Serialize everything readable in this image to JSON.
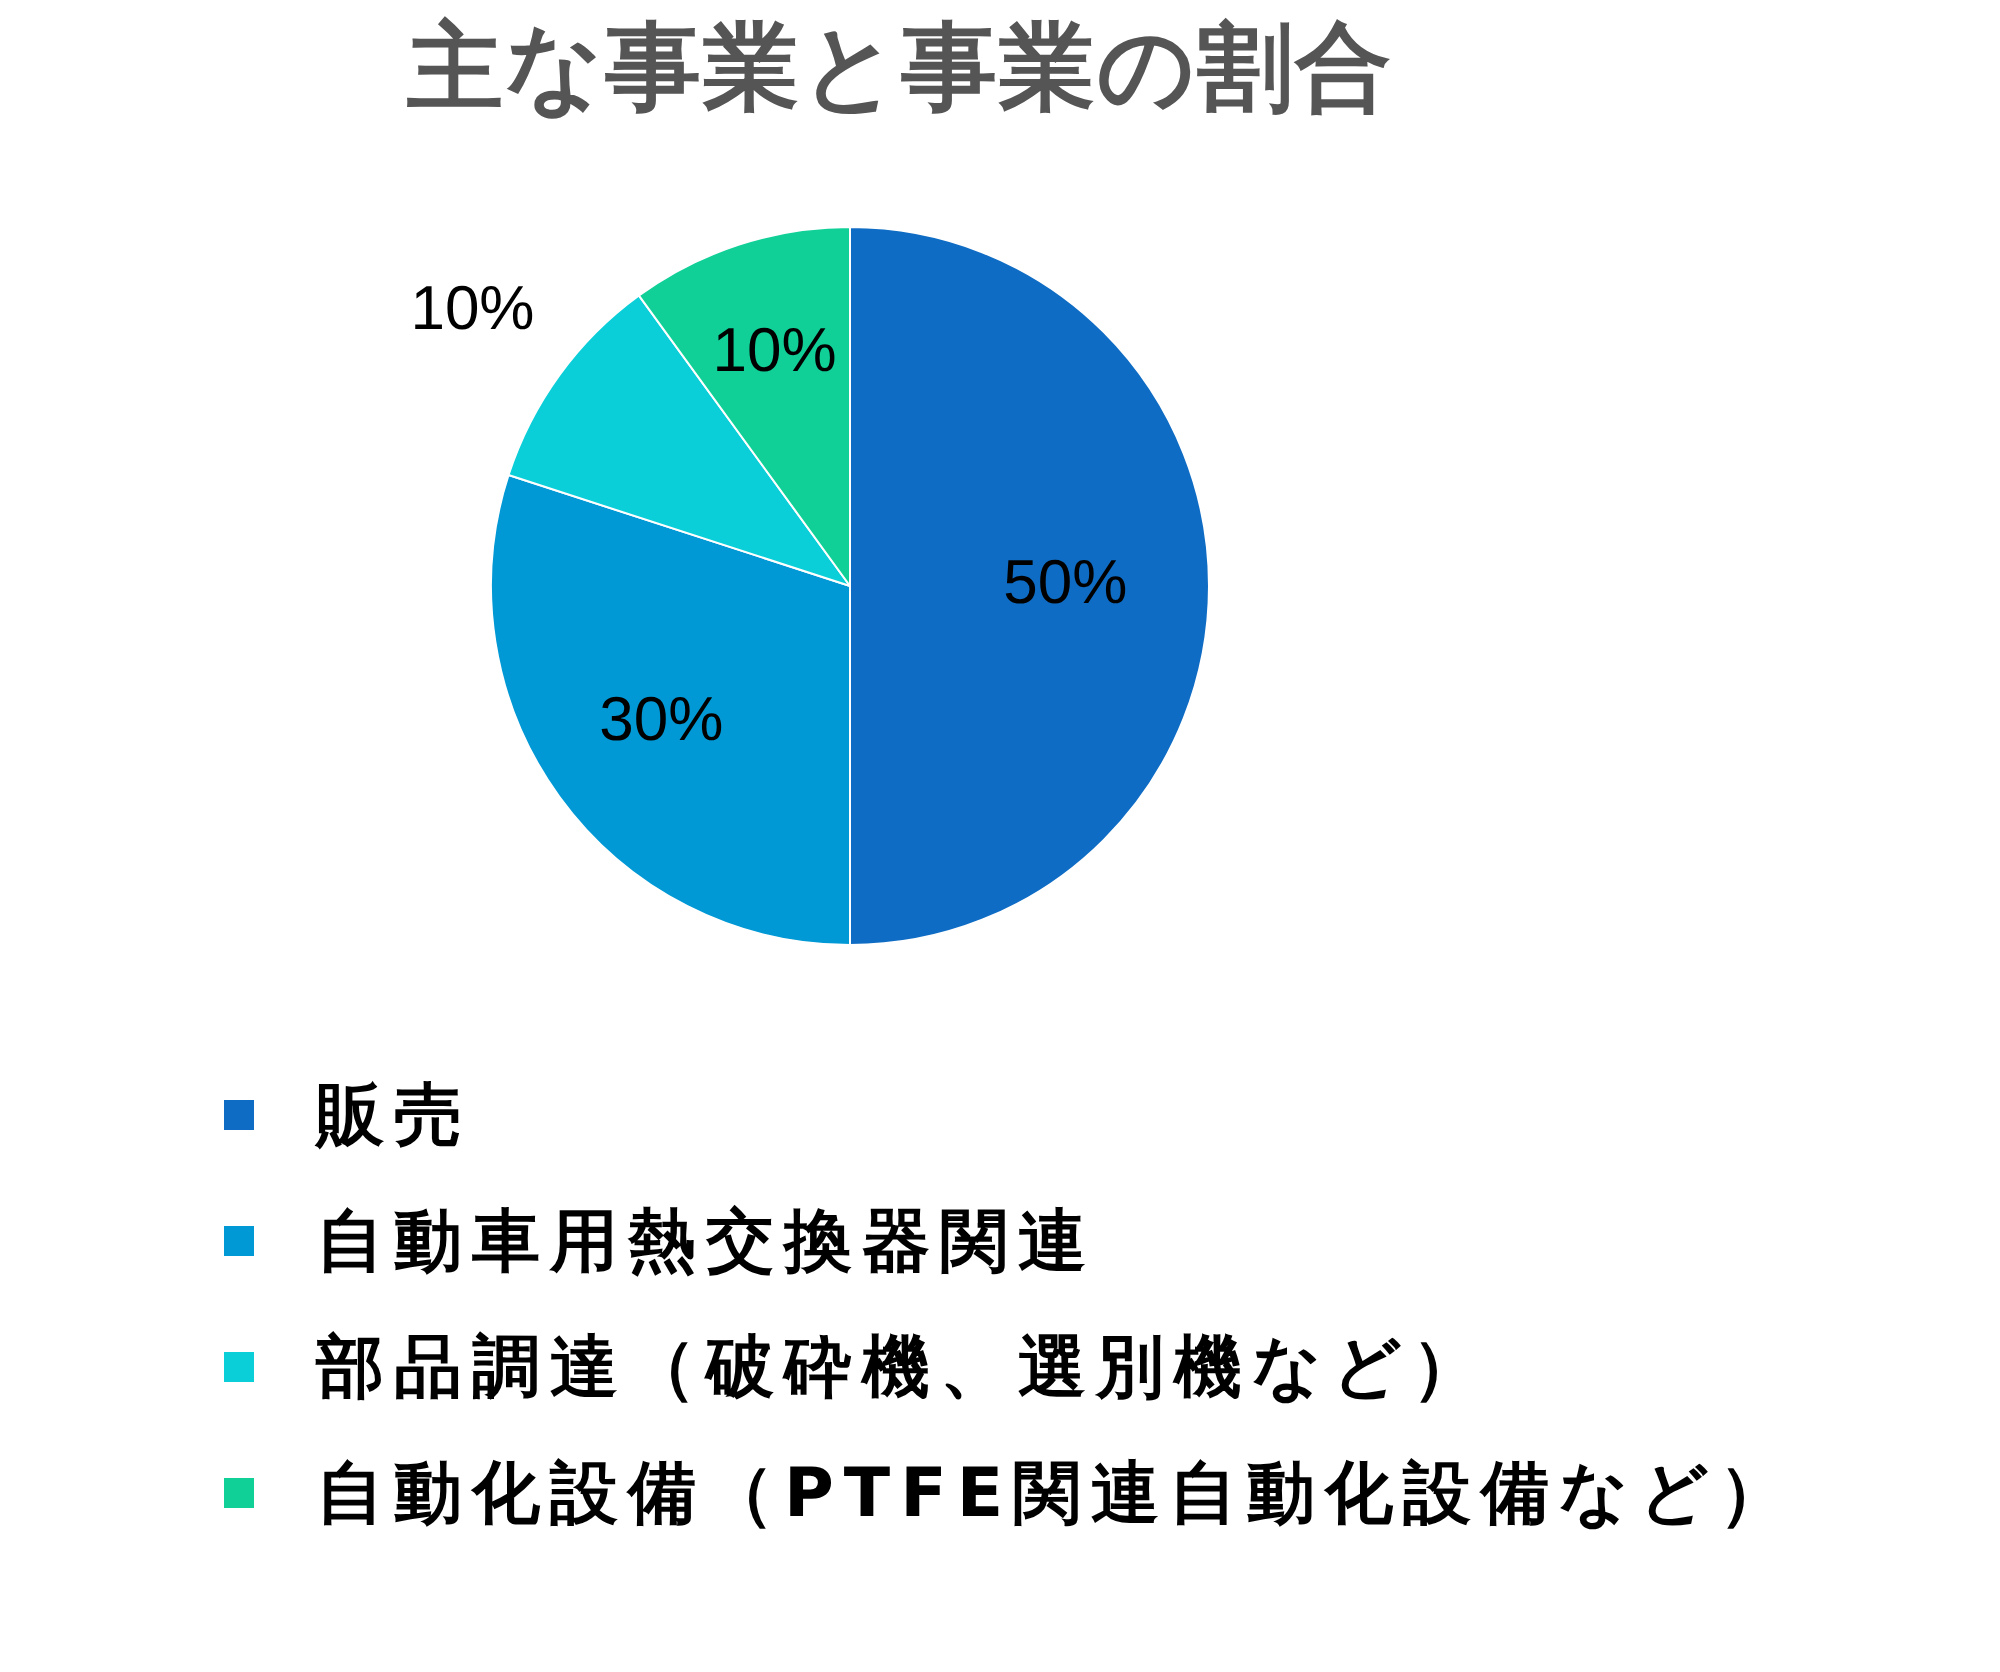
{
  "chart_data": {
    "type": "pie",
    "title": "主な事業と事業の割合",
    "categories": [
      "販売",
      "自動車用熱交換器関連",
      "部品調達（破砕機、選別機など）",
      "自動化設備（PTFE関連自動化設備など）"
    ],
    "values": [
      50,
      30,
      10,
      10
    ],
    "colors": [
      "#0f6cc4",
      "#0099d6",
      "#0acfd8",
      "#10d098"
    ],
    "value_labels": [
      "50%",
      "30%",
      "10%",
      "10%"
    ],
    "legend": "bottom"
  }
}
